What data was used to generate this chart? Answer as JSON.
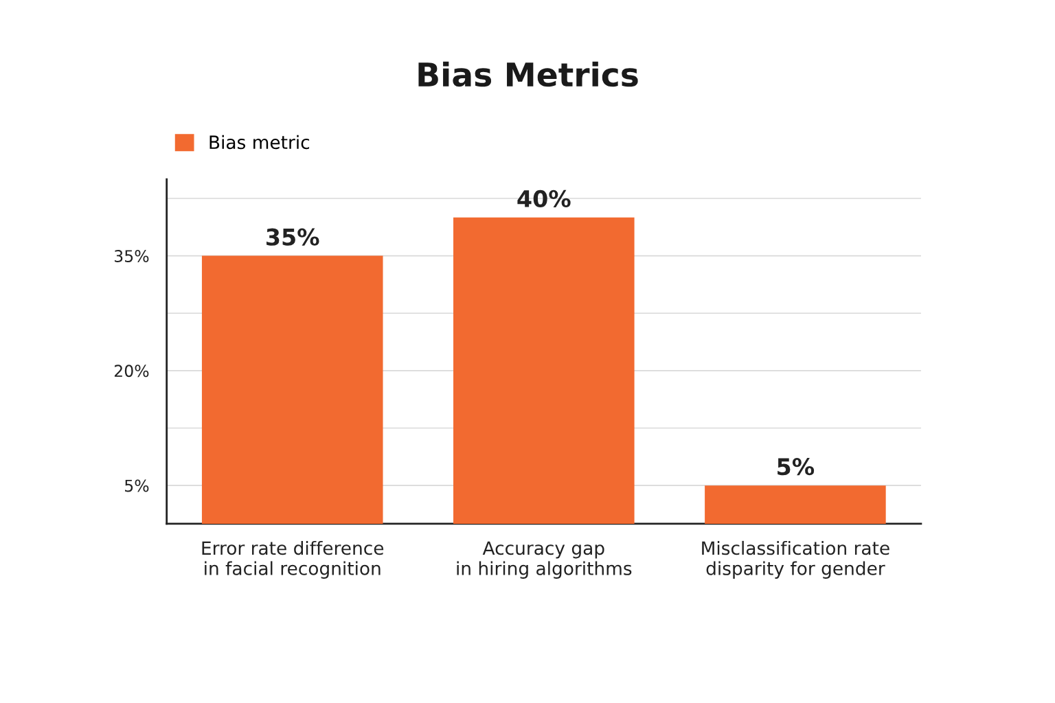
{
  "chart_data": {
    "type": "bar",
    "title": "Bias Metrics",
    "categories": [
      "Error rate difference\nin facial recognition",
      "Accuracy gap\nin hiring algorithms",
      "Misclassification rate\ndisparity for gender"
    ],
    "series": [
      {
        "name": "Bias metric",
        "color": "#f26a30",
        "values": [
          35,
          40,
          5
        ],
        "value_labels": [
          "35%",
          "40%",
          "5%"
        ]
      }
    ],
    "ylim": [
      0,
      45
    ],
    "yticks": [
      {
        "value": 5,
        "label": "5%"
      },
      {
        "value": 12.5,
        "label": null
      },
      {
        "value": 20,
        "label": "20%"
      },
      {
        "value": 27.5,
        "label": null
      },
      {
        "value": 35,
        "label": "35%"
      },
      {
        "value": 42.5,
        "label": null
      }
    ],
    "grid": "y",
    "legend": "top left"
  }
}
